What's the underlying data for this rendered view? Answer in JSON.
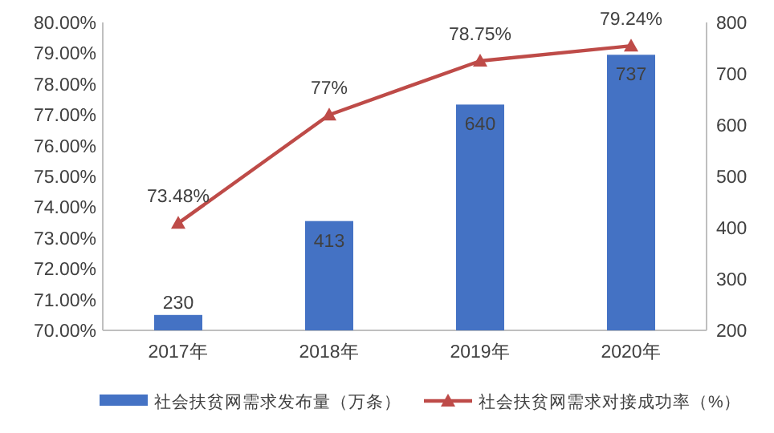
{
  "chart_data": {
    "type": "bar",
    "categories": [
      "2017年",
      "2018年",
      "2019年",
      "2020年"
    ],
    "series": [
      {
        "name": "社会扶贫网需求发布量（万条）",
        "axis": "y2",
        "color": "#4472c4",
        "values": [
          230,
          413,
          640,
          737
        ],
        "value_labels": [
          "230",
          "413",
          "640",
          "737"
        ]
      },
      {
        "name": "社会扶贫网需求对接成功率（%）",
        "type": "line",
        "axis": "y",
        "color": "#be4b48",
        "values": [
          73.48,
          77,
          78.75,
          79.24
        ],
        "value_labels": [
          "73.48%",
          "77%",
          "78.75%",
          "79.24%"
        ]
      }
    ],
    "marker": "triangle",
    "legend": "bottom",
    "ylim": [
      70,
      80
    ],
    "yticks": [
      {
        "value": 70,
        "label": "70.00%"
      },
      {
        "value": 71,
        "label": "71.00%"
      },
      {
        "value": 72,
        "label": "72.00%"
      },
      {
        "value": 73,
        "label": "73.00%"
      },
      {
        "value": 74,
        "label": "74.00%"
      },
      {
        "value": 75,
        "label": "75.00%"
      },
      {
        "value": 76,
        "label": "76.00%"
      },
      {
        "value": 77,
        "label": "77.00%"
      },
      {
        "value": 78,
        "label": "78.00%"
      },
      {
        "value": 79,
        "label": "79.00%"
      },
      {
        "value": 80,
        "label": "80.00%"
      }
    ],
    "y2lim": [
      200,
      800
    ],
    "y2ticks": [
      200,
      300,
      400,
      500,
      600,
      700,
      800
    ]
  }
}
